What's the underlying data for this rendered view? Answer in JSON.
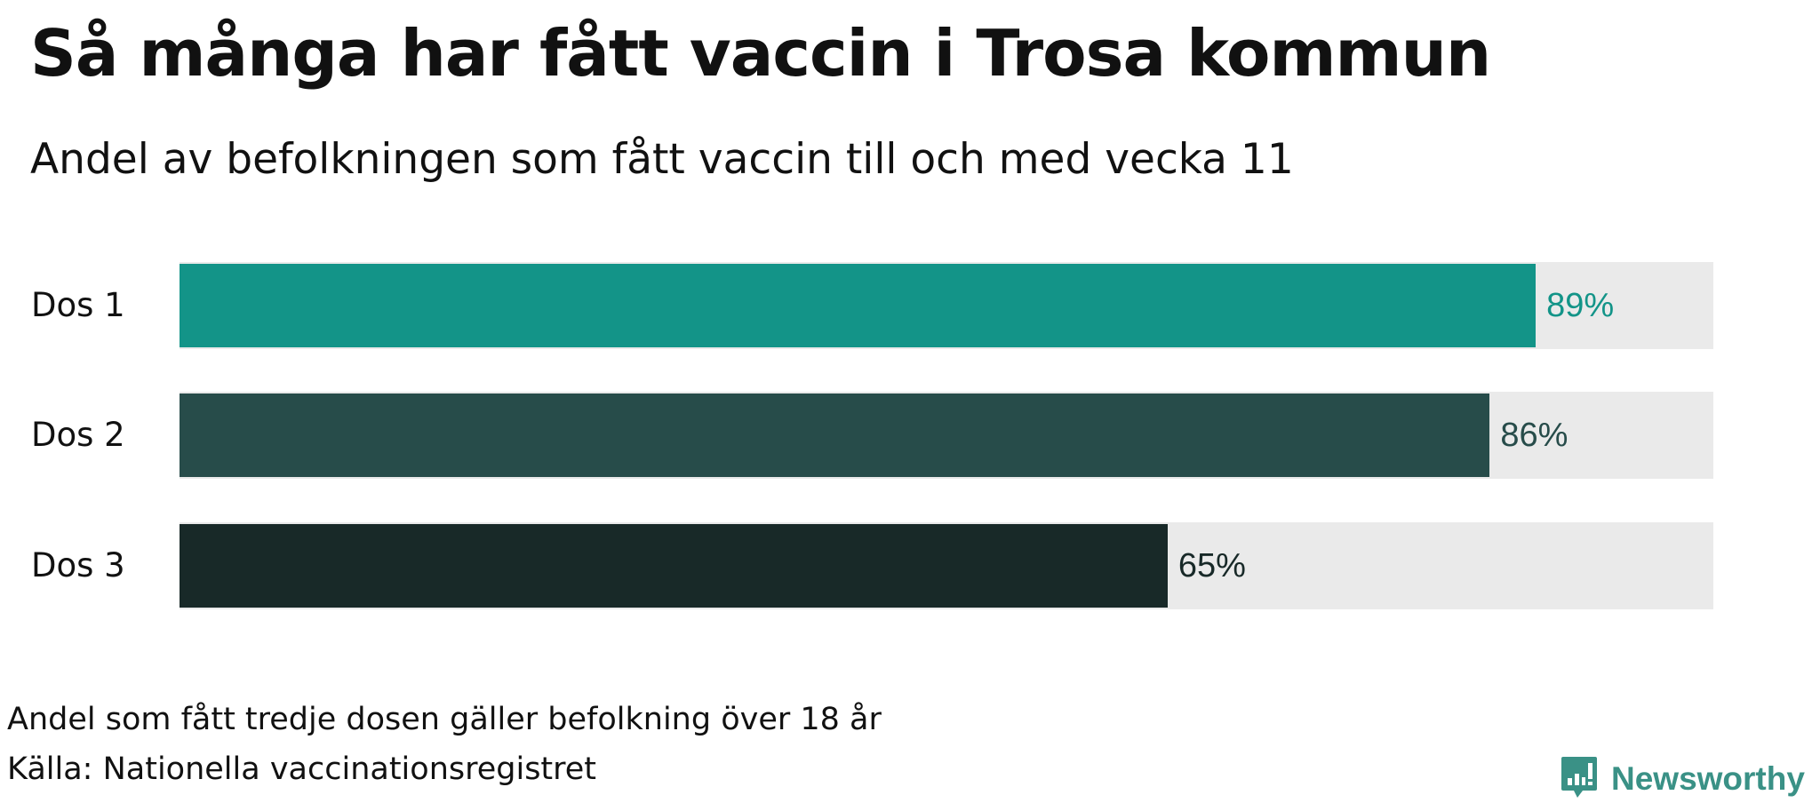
{
  "header": {
    "title": "Så många har fått vaccin i Trosa kommun",
    "subtitle": "Andel av befolkningen som fått vaccin till och med vecka 11"
  },
  "rows": [
    {
      "label": "Dos 1",
      "value": 89,
      "value_label": "89%",
      "color": "#139488",
      "text_color": "#139488"
    },
    {
      "label": "Dos 2",
      "value": 86,
      "value_label": "86%",
      "color": "#274c4a",
      "text_color": "#274c4a"
    },
    {
      "label": "Dos 3",
      "value": 65,
      "value_label": "65%",
      "color": "#182928",
      "text_color": "#182928"
    }
  ],
  "footer": {
    "note": "Andel som fått tredje dosen gäller befolkning över 18 år",
    "source": "Källa: Nationella vaccinationsregistret",
    "brand": "Newsworthy",
    "brand_icon": "bar-chart-speech-bubble-icon",
    "brand_color": "#3a9186"
  },
  "colors": {
    "track": "#eaeaea"
  },
  "chart_data": {
    "type": "bar",
    "orientation": "horizontal",
    "title": "Så många har fått vaccin i Trosa kommun",
    "subtitle": "Andel av befolkningen som fått vaccin till och med vecka 11",
    "categories": [
      "Dos 1",
      "Dos 2",
      "Dos 3"
    ],
    "values": [
      89,
      86,
      65
    ],
    "unit": "%",
    "xlim": [
      0,
      100
    ],
    "xlabel": "",
    "ylabel": "",
    "grid": false,
    "legend": null,
    "annotations": [
      "Andel som fått tredje dosen gäller befolkning över 18 år",
      "Källa: Nationella vaccinationsregistret"
    ]
  }
}
